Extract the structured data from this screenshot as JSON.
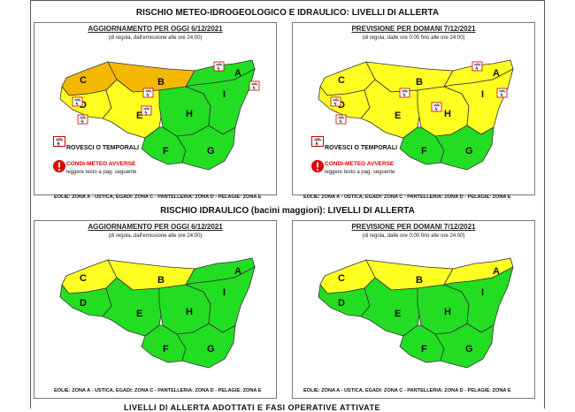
{
  "header_top": "RISCHIO METEO-IDROGEOLOGICO E IDRAULICO: LIVELLI DI ALLERTA",
  "header_mid": "RISCHIO IDRAULICO (bacini maggiori): LIVELLI DI ALLERTA",
  "bottom_cut": "LIVELLI DI ALLERTA ADOTTATI E FASI OPERATIVE ATTIVATE",
  "title_today": "AGGIORNAMENTO PER OGGI 6/12/2021",
  "sub_today": "(di regola, dall'emissione alle ore 24:00)",
  "title_tomorrow": "PREVISIONE PER DOMANI 7/12/2021",
  "sub_tomorrow": "(di regola, dalle ore 0:00 fino alle ore 24:00)",
  "legend_rovesci": "ROVESCI O TEMPORALI",
  "legend_condi": "CONDI-METEO AVVERSE",
  "legend_leggere": "leggere testo a pag. seguente",
  "footer": "EOLIE: ZONA A - USTICA, EGADI: ZONA C - PANTELLERIA: ZONA D - PELAGIE: ZONA E",
  "colors": {
    "green": "#22dd22",
    "yellow": "#ffff22",
    "orange": "#f5b800",
    "border": "#333333"
  },
  "zone_labels": [
    "A",
    "B",
    "C",
    "D",
    "E",
    "F",
    "G",
    "H",
    "I"
  ],
  "maps": {
    "m1": {
      "A": "green",
      "B": "orange",
      "C": "orange",
      "D": "yellow",
      "E": "yellow",
      "F": "green",
      "G": "green",
      "H": "green",
      "I": "green"
    },
    "m2": {
      "A": "yellow",
      "B": "yellow",
      "C": "yellow",
      "D": "yellow",
      "E": "yellow",
      "F": "green",
      "G": "green",
      "H": "yellow",
      "I": "yellow"
    },
    "m3": {
      "A": "green",
      "B": "yellow",
      "C": "yellow",
      "D": "green",
      "E": "green",
      "F": "green",
      "G": "green",
      "H": "green",
      "I": "green"
    },
    "m4": {
      "A": "yellow",
      "B": "yellow",
      "C": "yellow",
      "D": "green",
      "E": "green",
      "F": "green",
      "G": "green",
      "H": "green",
      "I": "green"
    }
  },
  "storm_icon": "thunderstorm-icon",
  "warning_icon": "exclamation-icon"
}
